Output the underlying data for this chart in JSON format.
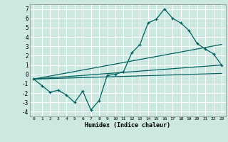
{
  "xlabel": "Humidex (Indice chaleur)",
  "background_color": "#cce8e0",
  "grid_color": "#ffffff",
  "line_color": "#006060",
  "xlim": [
    -0.5,
    23.5
  ],
  "ylim": [
    -4.5,
    7.5
  ],
  "x_ticks": [
    0,
    1,
    2,
    3,
    4,
    5,
    6,
    7,
    8,
    9,
    10,
    11,
    12,
    13,
    14,
    15,
    16,
    17,
    18,
    19,
    20,
    21,
    22,
    23
  ],
  "y_ticks": [
    -4,
    -3,
    -2,
    -1,
    0,
    1,
    2,
    3,
    4,
    5,
    6,
    7
  ],
  "series1_x": [
    0,
    1,
    2,
    3,
    4,
    5,
    6,
    7,
    8,
    9,
    10,
    11,
    12,
    13,
    14,
    15,
    16,
    17,
    18,
    19,
    20,
    21,
    22,
    23
  ],
  "series1_y": [
    -0.5,
    -1.2,
    -1.9,
    -1.7,
    -2.2,
    -3.0,
    -1.8,
    -3.8,
    -2.8,
    -0.1,
    0.0,
    0.3,
    2.3,
    3.2,
    5.5,
    5.9,
    7.0,
    6.0,
    5.5,
    4.7,
    3.3,
    2.7,
    2.2,
    1.0
  ],
  "series2_x": [
    0,
    23
  ],
  "series2_y": [
    -0.5,
    3.2
  ],
  "series3_x": [
    0,
    23
  ],
  "series3_y": [
    -0.5,
    1.0
  ],
  "series4_x": [
    0,
    23
  ],
  "series4_y": [
    -0.5,
    0.1
  ]
}
